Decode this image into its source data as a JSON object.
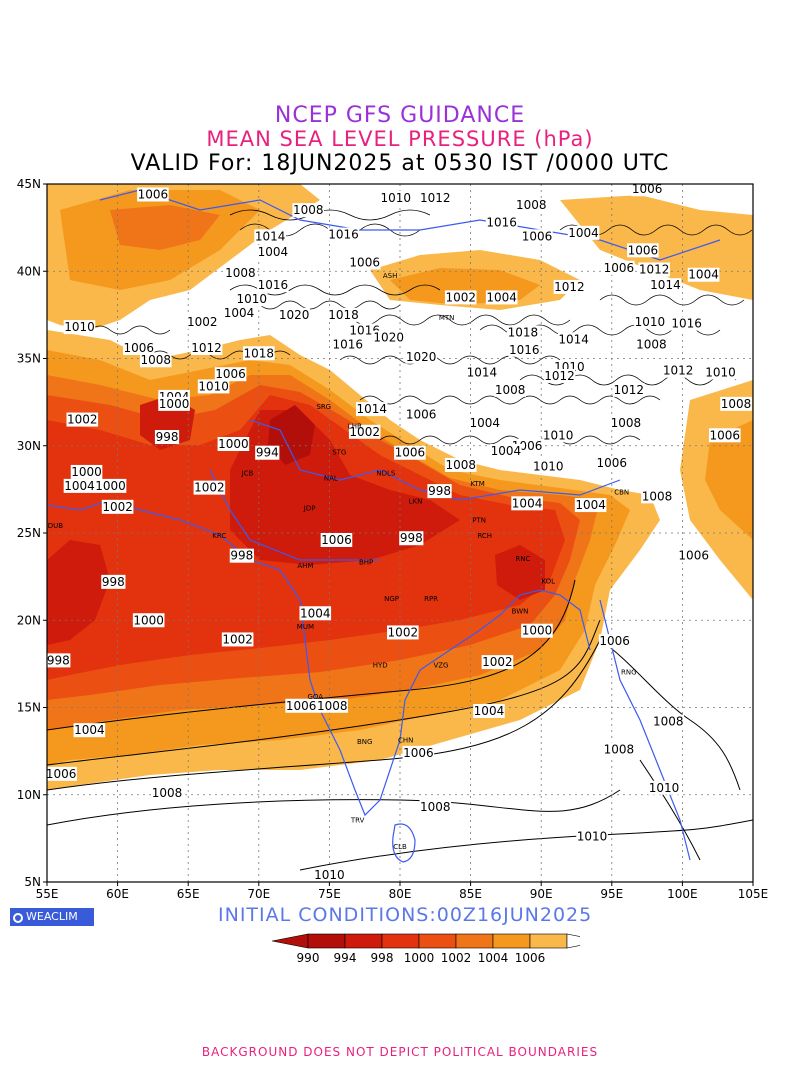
{
  "title": {
    "line1": "NCEP GFS GUIDANCE",
    "line2": "MEAN SEA LEVEL PRESSURE (hPa)",
    "line3": "VALID For: 18JUN2025 at 0530 IST /0000 UTC"
  },
  "axes": {
    "lon_ticks": [
      "55E",
      "60E",
      "65E",
      "70E",
      "75E",
      "80E",
      "85E",
      "90E",
      "95E",
      "100E",
      "105E"
    ],
    "lat_ticks": [
      "45N",
      "40N",
      "35N",
      "30N",
      "25N",
      "20N",
      "15N",
      "10N",
      "5N"
    ],
    "lon_range": [
      55,
      105
    ],
    "lat_range": [
      5,
      45
    ],
    "grid": "dotted"
  },
  "colors": {
    "c990": "#b30f0a",
    "c994": "#cf1b0b",
    "c998": "#e3320e",
    "c1000": "#ec4f12",
    "c1002": "#f07418",
    "c1004": "#f4981e",
    "c1006": "#fab84a",
    "above": "#ffffff",
    "boundary": "#3d5af0"
  },
  "contour_labels": [
    {
      "text": "1006",
      "lon": 62.5,
      "lat": 44.4
    },
    {
      "text": "1008",
      "lon": 73.5,
      "lat": 43.5
    },
    {
      "text": "1010",
      "lon": 79.7,
      "lat": 44.2
    },
    {
      "text": "1012",
      "lon": 82.5,
      "lat": 44.2
    },
    {
      "text": "1008",
      "lon": 89.3,
      "lat": 43.8
    },
    {
      "text": "1006",
      "lon": 97.5,
      "lat": 44.7
    },
    {
      "text": "1016",
      "lon": 87.2,
      "lat": 42.8
    },
    {
      "text": "1006",
      "lon": 89.7,
      "lat": 42.0
    },
    {
      "text": "1004",
      "lon": 93.0,
      "lat": 42.2
    },
    {
      "text": "1006",
      "lon": 97.2,
      "lat": 41.2
    },
    {
      "text": "1014",
      "lon": 70.8,
      "lat": 42.0
    },
    {
      "text": "1016",
      "lon": 76.0,
      "lat": 42.1
    },
    {
      "text": "1004",
      "lon": 71.0,
      "lat": 41.1
    },
    {
      "text": "1006",
      "lon": 77.5,
      "lat": 40.5
    },
    {
      "text": "1008",
      "lon": 68.7,
      "lat": 39.9
    },
    {
      "text": "1006",
      "lon": 95.5,
      "lat": 40.2
    },
    {
      "text": "1012",
      "lon": 98.0,
      "lat": 40.1
    },
    {
      "text": "1004",
      "lon": 101.5,
      "lat": 39.8
    },
    {
      "text": "1016",
      "lon": 71.0,
      "lat": 39.2
    },
    {
      "text": "1012",
      "lon": 92.0,
      "lat": 39.1
    },
    {
      "text": "1014",
      "lon": 98.8,
      "lat": 39.2
    },
    {
      "text": "1010",
      "lon": 69.5,
      "lat": 38.4
    },
    {
      "text": "1002",
      "lon": 84.3,
      "lat": 38.5
    },
    {
      "text": "1004",
      "lon": 87.2,
      "lat": 38.5
    },
    {
      "text": "1004",
      "lon": 68.6,
      "lat": 37.6
    },
    {
      "text": "1020",
      "lon": 72.5,
      "lat": 37.5
    },
    {
      "text": "1018",
      "lon": 76.0,
      "lat": 37.5
    },
    {
      "text": "1002",
      "lon": 66.0,
      "lat": 37.1
    },
    {
      "text": "1010",
      "lon": 57.3,
      "lat": 36.8
    },
    {
      "text": "1010",
      "lon": 97.7,
      "lat": 37.1
    },
    {
      "text": "1016",
      "lon": 100.3,
      "lat": 37.0
    },
    {
      "text": "1016",
      "lon": 77.5,
      "lat": 36.6
    },
    {
      "text": "1020",
      "lon": 79.2,
      "lat": 36.2
    },
    {
      "text": "1018",
      "lon": 88.7,
      "lat": 36.5
    },
    {
      "text": "1014",
      "lon": 92.3,
      "lat": 36.1
    },
    {
      "text": "1006",
      "lon": 61.5,
      "lat": 35.6
    },
    {
      "text": "1012",
      "lon": 66.3,
      "lat": 35.6
    },
    {
      "text": "1018",
      "lon": 70.0,
      "lat": 35.3
    },
    {
      "text": "1016",
      "lon": 76.3,
      "lat": 35.8
    },
    {
      "text": "1016",
      "lon": 88.8,
      "lat": 35.5
    },
    {
      "text": "1008",
      "lon": 97.8,
      "lat": 35.8
    },
    {
      "text": "1020",
      "lon": 81.5,
      "lat": 35.1
    },
    {
      "text": "1008",
      "lon": 62.7,
      "lat": 34.9
    },
    {
      "text": "1010",
      "lon": 92.0,
      "lat": 34.5
    },
    {
      "text": "1012",
      "lon": 99.7,
      "lat": 34.3
    },
    {
      "text": "1010",
      "lon": 102.7,
      "lat": 34.2
    },
    {
      "text": "1006",
      "lon": 68.0,
      "lat": 34.1
    },
    {
      "text": "1014",
      "lon": 85.8,
      "lat": 34.2
    },
    {
      "text": "1012",
      "lon": 91.3,
      "lat": 34.0
    },
    {
      "text": "1010",
      "lon": 66.8,
      "lat": 33.4
    },
    {
      "text": "1008",
      "lon": 87.8,
      "lat": 33.2
    },
    {
      "text": "1012",
      "lon": 96.2,
      "lat": 33.2
    },
    {
      "text": "1004",
      "lon": 64.0,
      "lat": 32.8
    },
    {
      "text": "1000",
      "lon": 64.0,
      "lat": 32.4
    },
    {
      "text": "1014",
      "lon": 78.0,
      "lat": 32.1
    },
    {
      "text": "1008",
      "lon": 103.8,
      "lat": 32.4
    },
    {
      "text": "1006",
      "lon": 81.5,
      "lat": 31.8
    },
    {
      "text": "1002",
      "lon": 57.5,
      "lat": 31.5
    },
    {
      "text": "1004",
      "lon": 86.0,
      "lat": 31.3
    },
    {
      "text": "1008",
      "lon": 96.0,
      "lat": 31.3
    },
    {
      "text": "998",
      "lon": 63.5,
      "lat": 30.5
    },
    {
      "text": "1002",
      "lon": 77.5,
      "lat": 30.8
    },
    {
      "text": "1010",
      "lon": 91.2,
      "lat": 30.6
    },
    {
      "text": "1006",
      "lon": 103.0,
      "lat": 30.6
    },
    {
      "text": "1000",
      "lon": 68.2,
      "lat": 30.1
    },
    {
      "text": "1006",
      "lon": 89.0,
      "lat": 30.0
    },
    {
      "text": "994",
      "lon": 70.6,
      "lat": 29.6
    },
    {
      "text": "1006",
      "lon": 80.7,
      "lat": 29.6
    },
    {
      "text": "1004",
      "lon": 87.5,
      "lat": 29.7
    },
    {
      "text": "1000",
      "lon": 57.8,
      "lat": 28.5
    },
    {
      "text": "1008",
      "lon": 84.3,
      "lat": 28.9
    },
    {
      "text": "1010",
      "lon": 90.5,
      "lat": 28.8
    },
    {
      "text": "1006",
      "lon": 95.0,
      "lat": 29.0
    },
    {
      "text": "1004",
      "lon": 57.3,
      "lat": 27.7
    },
    {
      "text": "1000",
      "lon": 59.5,
      "lat": 27.7
    },
    {
      "text": "1002",
      "lon": 66.5,
      "lat": 27.6
    },
    {
      "text": "998",
      "lon": 82.8,
      "lat": 27.4
    },
    {
      "text": "1008",
      "lon": 98.2,
      "lat": 27.1
    },
    {
      "text": "1004",
      "lon": 89.0,
      "lat": 26.7
    },
    {
      "text": "1004",
      "lon": 93.5,
      "lat": 26.6
    },
    {
      "text": "1002",
      "lon": 60.0,
      "lat": 26.5
    },
    {
      "text": "1006",
      "lon": 75.5,
      "lat": 24.6
    },
    {
      "text": "998",
      "lon": 80.8,
      "lat": 24.7
    },
    {
      "text": "998",
      "lon": 68.8,
      "lat": 23.7
    },
    {
      "text": "1006",
      "lon": 100.8,
      "lat": 23.7
    },
    {
      "text": "998",
      "lon": 59.7,
      "lat": 22.2
    },
    {
      "text": "1004",
      "lon": 74.0,
      "lat": 20.4
    },
    {
      "text": "1000",
      "lon": 62.2,
      "lat": 20.0
    },
    {
      "text": "1002",
      "lon": 80.2,
      "lat": 19.3
    },
    {
      "text": "1000",
      "lon": 89.7,
      "lat": 19.4
    },
    {
      "text": "1002",
      "lon": 68.5,
      "lat": 18.9
    },
    {
      "text": "1006",
      "lon": 95.2,
      "lat": 18.8
    },
    {
      "text": "998",
      "lon": 55.8,
      "lat": 17.7
    },
    {
      "text": "1002",
      "lon": 86.9,
      "lat": 17.6
    },
    {
      "text": "1006",
      "lon": 73.0,
      "lat": 15.1
    },
    {
      "text": "1008",
      "lon": 75.2,
      "lat": 15.1
    },
    {
      "text": "1004",
      "lon": 86.3,
      "lat": 14.8
    },
    {
      "text": "1004",
      "lon": 58.0,
      "lat": 13.7
    },
    {
      "text": "1008",
      "lon": 99.0,
      "lat": 14.2
    },
    {
      "text": "1006",
      "lon": 81.3,
      "lat": 12.4
    },
    {
      "text": "1008",
      "lon": 95.5,
      "lat": 12.6
    },
    {
      "text": "1006",
      "lon": 56.0,
      "lat": 11.2
    },
    {
      "text": "1008",
      "lon": 63.5,
      "lat": 10.1
    },
    {
      "text": "1010",
      "lon": 98.7,
      "lat": 10.4
    },
    {
      "text": "1008",
      "lon": 82.5,
      "lat": 9.3
    },
    {
      "text": "1010",
      "lon": 93.6,
      "lat": 7.6
    },
    {
      "text": "1010",
      "lon": 75.0,
      "lat": 5.4
    }
  ],
  "cities": [
    {
      "text": "SRG",
      "lon": 74.6,
      "lat": 32.1
    },
    {
      "text": "LHR",
      "lon": 76.8,
      "lat": 31.0
    },
    {
      "text": "STG",
      "lon": 75.7,
      "lat": 29.5
    },
    {
      "text": "NAL",
      "lon": 75.1,
      "lat": 28.0
    },
    {
      "text": "NDLS",
      "lon": 79.0,
      "lat": 28.3
    },
    {
      "text": "JCB",
      "lon": 69.2,
      "lat": 28.3
    },
    {
      "text": "LKN",
      "lon": 81.1,
      "lat": 26.7
    },
    {
      "text": "PTN",
      "lon": 85.6,
      "lat": 25.6
    },
    {
      "text": "JDP",
      "lon": 73.6,
      "lat": 26.3
    },
    {
      "text": "KRC",
      "lon": 67.2,
      "lat": 24.7
    },
    {
      "text": "RCH",
      "lon": 86.0,
      "lat": 24.7
    },
    {
      "text": "AHM",
      "lon": 73.3,
      "lat": 23.0
    },
    {
      "text": "BHP",
      "lon": 77.6,
      "lat": 23.2
    },
    {
      "text": "RNC",
      "lon": 88.7,
      "lat": 23.4
    },
    {
      "text": "KOL",
      "lon": 90.5,
      "lat": 22.1
    },
    {
      "text": "NGP",
      "lon": 79.4,
      "lat": 21.1
    },
    {
      "text": "RPR",
      "lon": 82.2,
      "lat": 21.1
    },
    {
      "text": "DUB",
      "lon": 55.6,
      "lat": 25.3
    },
    {
      "text": "BWN",
      "lon": 88.5,
      "lat": 20.4
    },
    {
      "text": "MUM",
      "lon": 73.3,
      "lat": 19.5
    },
    {
      "text": "HYD",
      "lon": 78.6,
      "lat": 17.3
    },
    {
      "text": "VZG",
      "lon": 82.9,
      "lat": 17.3
    },
    {
      "text": "GOA",
      "lon": 74.0,
      "lat": 15.5
    },
    {
      "text": "RNG",
      "lon": 96.2,
      "lat": 16.9
    },
    {
      "text": "BNG",
      "lon": 77.5,
      "lat": 12.9
    },
    {
      "text": "CHN",
      "lon": 80.4,
      "lat": 13.0
    },
    {
      "text": "TRV",
      "lon": 77.0,
      "lat": 8.4
    },
    {
      "text": "CLB",
      "lon": 80.0,
      "lat": 6.9
    },
    {
      "text": "CBN",
      "lon": 95.7,
      "lat": 27.2
    },
    {
      "text": "KTM",
      "lon": 85.5,
      "lat": 27.7
    },
    {
      "text": "ASH",
      "lon": 79.3,
      "lat": 39.6
    },
    {
      "text": "MTN",
      "lon": 83.3,
      "lat": 37.2
    }
  ],
  "logo": "WEACLIM",
  "initial_conditions": "INITIAL CONDITIONS:00Z16JUN2025",
  "legend": {
    "levels": [
      "990",
      "994",
      "998",
      "1000",
      "1002",
      "1004",
      "1006"
    ]
  },
  "footer": "BACKGROUND DOES NOT DEPICT POLITICAL BOUNDARIES"
}
